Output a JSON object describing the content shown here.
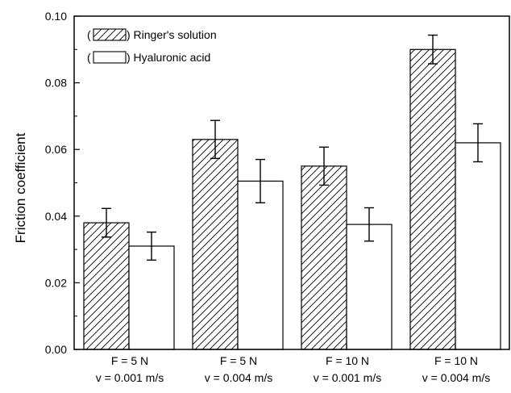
{
  "chart_data": {
    "type": "bar",
    "categories": [
      [
        "F = 5 N",
        "v = 0.001 m/s"
      ],
      [
        "F = 5 N",
        "v = 0.004 m/s"
      ],
      [
        "F = 10 N",
        "v = 0.001 m/s"
      ],
      [
        "F = 10 N",
        "v = 0.004 m/s"
      ]
    ],
    "series": [
      {
        "name": "Ringer's solution",
        "legend_prefix": "(",
        "legend_suffix": ") Ringer's solution",
        "pattern": "diagonal-hatch",
        "values": [
          0.038,
          0.063,
          0.055,
          0.09
        ],
        "errors": [
          0.0043,
          0.0057,
          0.0057,
          0.0043
        ]
      },
      {
        "name": "Hyaluronic acid",
        "legend_prefix": "(",
        "legend_suffix": ") Hyaluronic acid",
        "pattern": "solid-white",
        "values": [
          0.031,
          0.0505,
          0.0375,
          0.062
        ],
        "errors": [
          0.0042,
          0.0065,
          0.005,
          0.0057
        ]
      }
    ],
    "title": "",
    "xlabel": "",
    "ylabel": "Friction coefficient",
    "ylim": [
      0.0,
      0.1
    ],
    "yticks": [
      "0.00",
      "0.02",
      "0.04",
      "0.06",
      "0.08",
      "0.10"
    ],
    "legend_position": "top-left",
    "grid": false
  }
}
